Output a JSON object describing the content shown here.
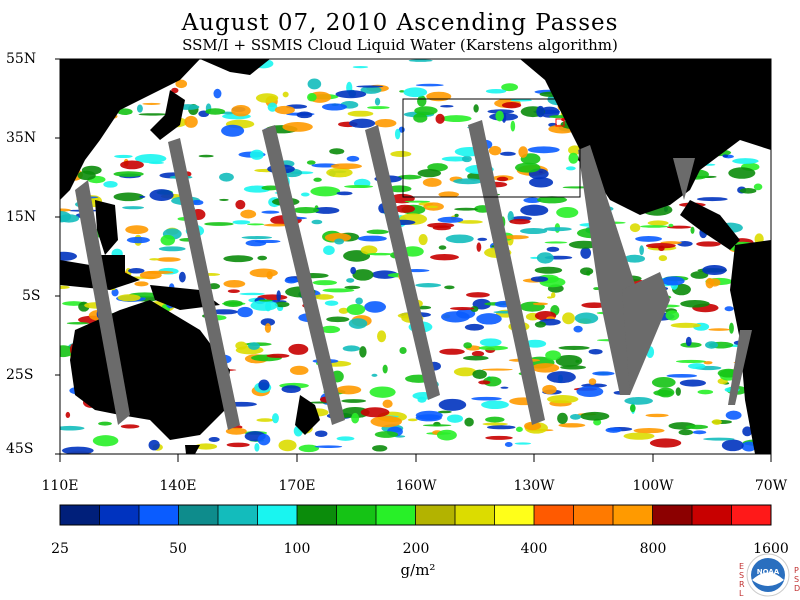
{
  "title": "August 07, 2010  Ascending Passes",
  "subtitle": "SSM/I + SSMIS Cloud Liquid Water (Karstens algorithm)",
  "lat_labels": [
    "55N",
    "35N",
    "15N",
    "5S",
    "25S",
    "45S"
  ],
  "lon_labels": [
    "110E",
    "140E",
    "170E",
    "160W",
    "130W",
    "100W",
    "70W"
  ],
  "colorbar": {
    "colors": [
      "#001f7a",
      "#0033bf",
      "#0a5cff",
      "#0e8c8c",
      "#13bcbc",
      "#19f5f0",
      "#0b8c0b",
      "#15c315",
      "#28f028",
      "#b3b300",
      "#dcdc00",
      "#ffff19",
      "#ff5a00",
      "#ff7a00",
      "#ff9a00",
      "#8c0000",
      "#c80000",
      "#ff1919"
    ],
    "labels": [
      "25",
      "50",
      "100",
      "200",
      "400",
      "800",
      "1600"
    ]
  },
  "units": "g/m²",
  "logo": {
    "left_letters": "ESRL",
    "right_letters": "PSD"
  },
  "colors": {
    "land": "#000000",
    "swath_gap": "#6b6b6b",
    "ocean": "#ffffff"
  }
}
